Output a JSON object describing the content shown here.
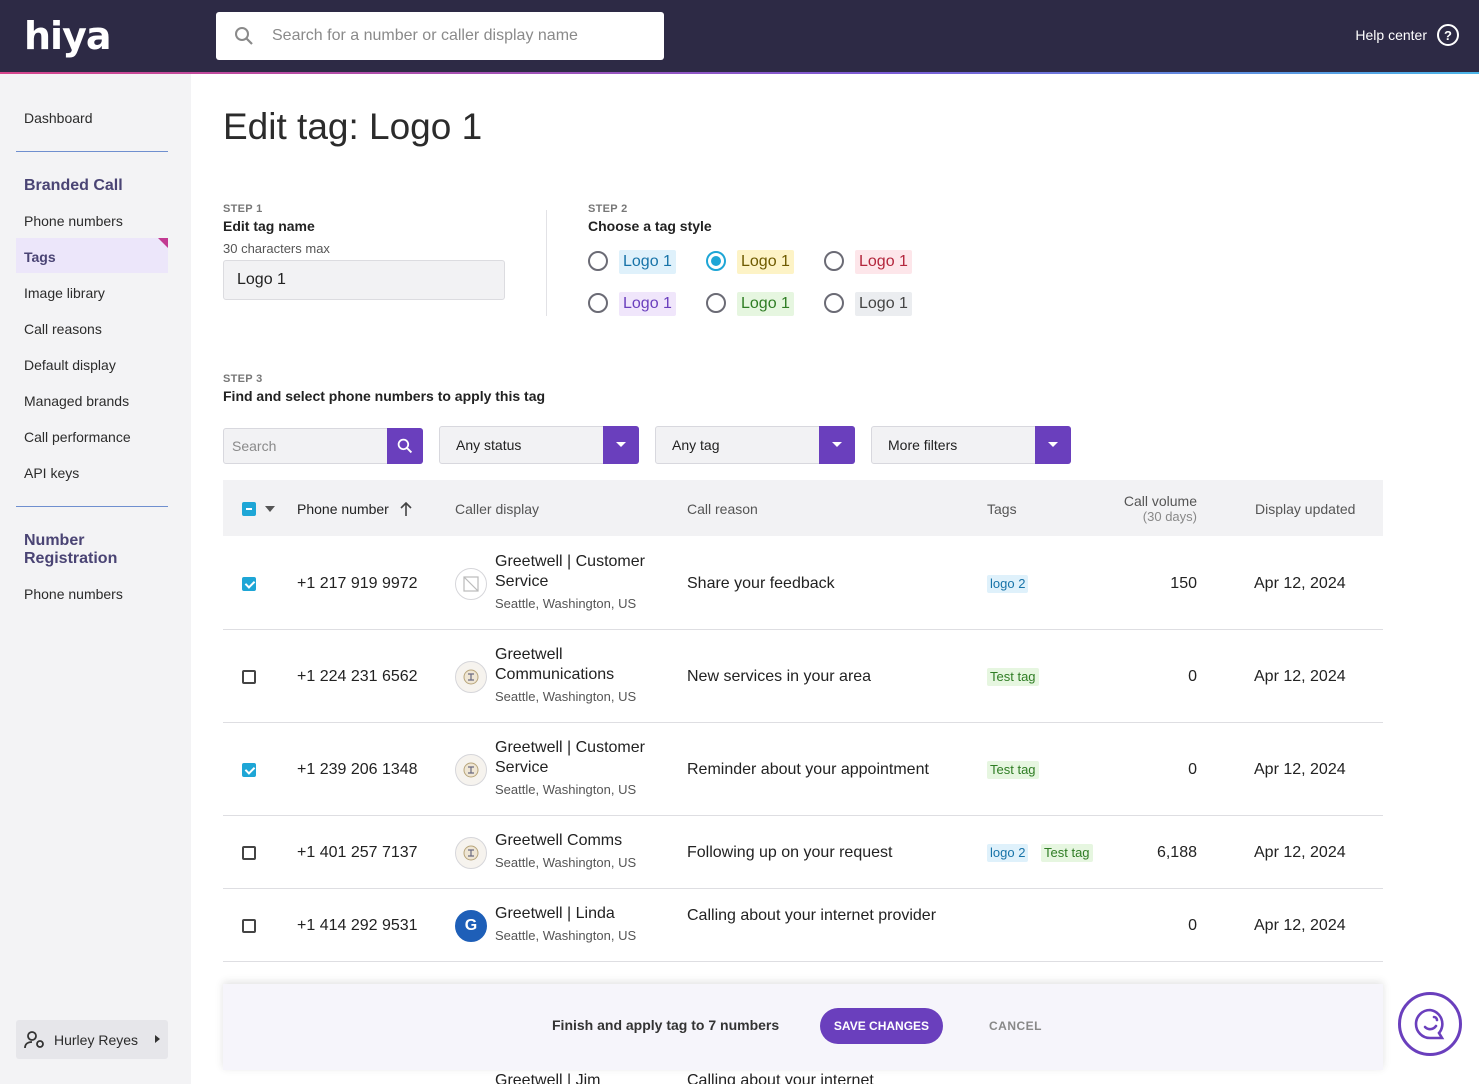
{
  "header": {
    "logo": "hiya",
    "search_placeholder": "Search for a number or caller display name",
    "help_label": "Help center",
    "help_glyph": "?"
  },
  "sidebar": {
    "dashboard": "Dashboard",
    "section1": "Branded Call",
    "items1": [
      "Phone numbers",
      "Tags",
      "Image library",
      "Call reasons",
      "Default display",
      "Managed brands",
      "Call performance",
      "API keys"
    ],
    "section2_line1": "Number",
    "section2_line2": "Registration",
    "items2": [
      "Phone numbers"
    ],
    "user_name": "Hurley Reyes"
  },
  "page": {
    "title": "Edit tag: Logo 1",
    "step1": {
      "label": "STEP 1",
      "title": "Edit tag name",
      "hint": "30 characters max",
      "value": "Logo 1"
    },
    "step2": {
      "label": "STEP 2",
      "title": "Choose a tag style",
      "styles": [
        {
          "text": "Logo 1",
          "bg": "#dff1fb",
          "fg": "#1773a8",
          "selected": false
        },
        {
          "text": "Logo 1",
          "bg": "#fdf3c6",
          "fg": "#6e5a00",
          "selected": true
        },
        {
          "text": "Logo 1",
          "bg": "#fde6ea",
          "fg": "#b3263c",
          "selected": false
        },
        {
          "text": "Logo 1",
          "bg": "#f0e6fb",
          "fg": "#6a3fbd",
          "selected": false
        },
        {
          "text": "Logo 1",
          "bg": "#e6f6e0",
          "fg": "#2f7d24",
          "selected": false
        },
        {
          "text": "Logo 1",
          "bg": "#ebedf0",
          "fg": "#444444",
          "selected": false
        }
      ]
    },
    "step3": {
      "label": "STEP 3",
      "title": "Find and select phone numbers to apply this tag"
    }
  },
  "filters": {
    "search_placeholder": "Search",
    "status": "Any status",
    "tag": "Any tag",
    "more": "More filters"
  },
  "table": {
    "headers": {
      "phone": "Phone number",
      "caller": "Caller display",
      "reason": "Call reason",
      "tags": "Tags",
      "volume": "Call volume",
      "volume_sub": "(30 days)",
      "updated": "Display updated"
    },
    "rows": [
      {
        "checked": true,
        "phone": "+1 217 919 9972",
        "name": "Greetwell | Customer Service",
        "location": "Seattle, Washington, US",
        "avatar": "blocked",
        "reason": "Share your feedback",
        "tags": [
          {
            "text": "logo 2",
            "color": "blue"
          }
        ],
        "volume": "150",
        "date": "Apr 12, 2024"
      },
      {
        "checked": false,
        "phone": "+1 224 231 6562",
        "name": "Greetwell Communications",
        "location": "Seattle, Washington, US",
        "avatar": "emblem",
        "reason": "New services in your area",
        "tags": [
          {
            "text": "Test tag",
            "color": "green"
          }
        ],
        "volume": "0",
        "date": "Apr 12, 2024"
      },
      {
        "checked": true,
        "phone": "+1 239 206 1348",
        "name": "Greetwell | Customer Service",
        "location": "Seattle, Washington, US",
        "avatar": "emblem",
        "reason": "Reminder about your appointment",
        "tags": [
          {
            "text": "Test tag",
            "color": "green"
          }
        ],
        "volume": "0",
        "date": "Apr 12, 2024"
      },
      {
        "checked": false,
        "phone": "+1 401 257 7137",
        "name": "Greetwell Comms",
        "location": "Seattle, Washington, US",
        "avatar": "emblem",
        "reason": "Following up on your request",
        "tags": [
          {
            "text": "logo 2",
            "color": "blue"
          },
          {
            "text": "Test tag",
            "color": "green"
          }
        ],
        "volume": "6,188",
        "date": "Apr 12, 2024"
      },
      {
        "checked": false,
        "phone": "+1 414 292 9531",
        "name": "Greetwell | Linda",
        "location": "Seattle, Washington, US",
        "avatar": "G",
        "reason": "Calling about your internet provider",
        "tags": [],
        "volume": "0",
        "date": "Apr 12, 2024"
      }
    ],
    "partial_row": {
      "name": "Greetwell | Jim",
      "reason": "Calling about your internet"
    }
  },
  "footer": {
    "message": "Finish and apply tag to 7 numbers",
    "save": "SAVE CHANGES",
    "cancel": "CANCEL"
  }
}
